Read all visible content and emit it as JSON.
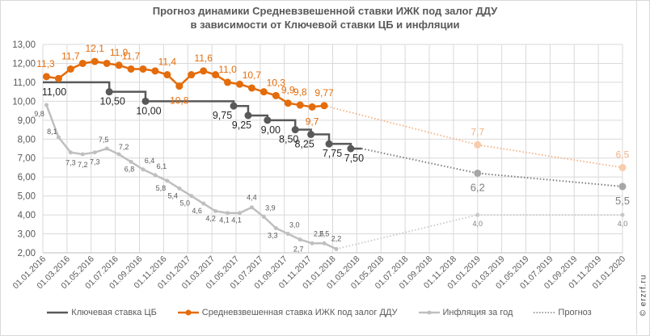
{
  "chart_data": {
    "type": "line",
    "title_line1": "Прогноз динамики Средневзвешенной ставки ИЖК под залог ДДУ",
    "title_line2": "в зависимости от Ключевой ставки ЦБ и инфляции",
    "ylim": [
      2,
      13
    ],
    "yticks": [
      "2,00",
      "3,00",
      "4,00",
      "5,00",
      "6,00",
      "7,00",
      "8,00",
      "9,00",
      "10,00",
      "11,00",
      "12,00",
      "13,00"
    ],
    "ytick_values": [
      2,
      3,
      4,
      5,
      6,
      7,
      8,
      9,
      10,
      11,
      12,
      13
    ],
    "x_months_range": [
      0,
      48
    ],
    "xticks": [
      "01.01.2016",
      "01.03.2016",
      "01.05.2016",
      "01.07.2016",
      "01.09.2016",
      "01.11.2016",
      "01.01.2017",
      "01.03.2017",
      "01.05.2017",
      "01.07.2017",
      "01.09.2017",
      "01.11.2017",
      "01.01.2018",
      "01.03.2018",
      "01.05.2018",
      "01.07.2018",
      "01.09.2018",
      "01.11.2018",
      "01.01.2019",
      "01.03.2019",
      "01.05.2019",
      "01.07.2019",
      "01.09.2019",
      "01.11.2019",
      "01.01.2020"
    ],
    "grid": true,
    "legend_position": "bottom",
    "series": [
      {
        "name": "Ключевая ставка ЦБ",
        "color": "#595959",
        "kind": "step",
        "steps": [
          {
            "start": 0,
            "end": 5.5,
            "value": 11.0,
            "label": "11,00"
          },
          {
            "start": 5.5,
            "end": 8.5,
            "value": 10.5,
            "label": "10,50"
          },
          {
            "start": 8.5,
            "end": 15.8,
            "value": 10.0,
            "label": "10,00"
          },
          {
            "start": 15.8,
            "end": 17,
            "value": 9.75,
            "label": "9,75"
          },
          {
            "start": 17,
            "end": 18.6,
            "value": 9.25,
            "label": "9,25"
          },
          {
            "start": 18.6,
            "end": 20.9,
            "value": 9.0,
            "label": "9,00"
          },
          {
            "start": 20.9,
            "end": 22.2,
            "value": 8.5,
            "label": "8,50"
          },
          {
            "start": 22.2,
            "end": 23.7,
            "value": 8.25,
            "label": "8,25"
          },
          {
            "start": 23.7,
            "end": 25.5,
            "value": 7.75,
            "label": "7,75"
          },
          {
            "start": 25.5,
            "end": 26.4,
            "value": 7.5,
            "label": "7,50"
          }
        ]
      },
      {
        "name": "Средневзвешенная ставка ИЖК под залог ДДУ",
        "color": "#e46c0a",
        "x": [
          0.3,
          1.3,
          2.3,
          3.3,
          4.3,
          5.3,
          6.3,
          7.3,
          8.3,
          9.3,
          10.3,
          11.3,
          12.3,
          13.3,
          14.3,
          15.3,
          16.3,
          17.3,
          18.3,
          19.3,
          20.3,
          21.3,
          22.3,
          23.3
        ],
        "values": [
          11.3,
          11.2,
          11.7,
          12.0,
          12.1,
          12.0,
          11.9,
          11.7,
          11.7,
          11.6,
          11.4,
          10.8,
          11.4,
          11.6,
          11.4,
          11.0,
          10.9,
          10.7,
          10.5,
          10.3,
          9.9,
          9.8,
          9.7,
          9.77
        ],
        "labels": [
          "11,3",
          "",
          "11,7",
          "",
          "12,1",
          "",
          "11,9",
          "11,7",
          "",
          "",
          "11,4",
          "10,8",
          "",
          "11,6",
          "",
          "11,0",
          "",
          "10,7",
          "",
          "10,3",
          "9,9",
          "9,8",
          "9,7",
          "9,77"
        ]
      },
      {
        "name": "Инфляция за год",
        "color": "#bfbfbf",
        "x": [
          0.3,
          1.3,
          2.3,
          3.3,
          4.3,
          5.3,
          6.3,
          7.3,
          8.3,
          9.3,
          10.3,
          11.3,
          12.3,
          13.3,
          14.3,
          15.3,
          16.3,
          17.3,
          18.3,
          19.3,
          20.3,
          21.3,
          22.3,
          23.3,
          24.3
        ],
        "values": [
          9.8,
          8.1,
          7.3,
          7.2,
          7.3,
          7.5,
          7.2,
          6.8,
          6.4,
          6.1,
          5.8,
          5.4,
          5.0,
          4.6,
          4.2,
          4.1,
          4.1,
          4.4,
          3.9,
          3.3,
          3.0,
          2.7,
          2.5,
          2.5,
          2.2
        ],
        "labels": [
          "9,8",
          "8,1",
          "7,3",
          "7,2",
          "7,3",
          "7,5",
          "7,2",
          "6,8",
          "6,4",
          "6,1",
          "5,8",
          "5,4",
          "5,0",
          "4,6",
          "4,2",
          "4,1",
          "4,1",
          "4,4",
          "3,9",
          "3,3",
          "3,0",
          "2,7",
          "2,5",
          "2,5",
          "2,2"
        ]
      },
      {
        "name": "Прогноз",
        "color": "#7f7f7f",
        "kind": "dotted",
        "forecasts": [
          {
            "of": "Средневзвешенная ставка ИЖК под залог ДДУ",
            "color": "#f4b183",
            "from": [
              23.3,
              9.77
            ],
            "points": [
              {
                "x": 36,
                "value": 7.7,
                "label": "7,7"
              },
              {
                "x": 48,
                "value": 6.5,
                "label": "6,5"
              }
            ]
          },
          {
            "of": "Ключевая ставка ЦБ",
            "color": "#7f7f7f",
            "from": [
              26.4,
              7.5
            ],
            "points": [
              {
                "x": 36,
                "value": 6.2,
                "label": "6,2"
              },
              {
                "x": 48,
                "value": 5.5,
                "label": "5,5"
              }
            ]
          },
          {
            "of": "Инфляция за год",
            "color": "#c8c8c8",
            "from": [
              24.3,
              2.2
            ],
            "points": [
              {
                "x": 36,
                "value": 4.0,
                "label": "4,0"
              },
              {
                "x": 48,
                "value": 4.0,
                "label": "4,0"
              }
            ]
          }
        ]
      }
    ]
  },
  "legend": {
    "key_rate": "Ключевая ставка ЦБ",
    "mortgage_rate": "Средневзвешенная ставка ИЖК под залог ДДУ",
    "inflation": "Инфляция за год",
    "forecast": "Прогноз"
  },
  "copyright": "© erzrf.ru"
}
